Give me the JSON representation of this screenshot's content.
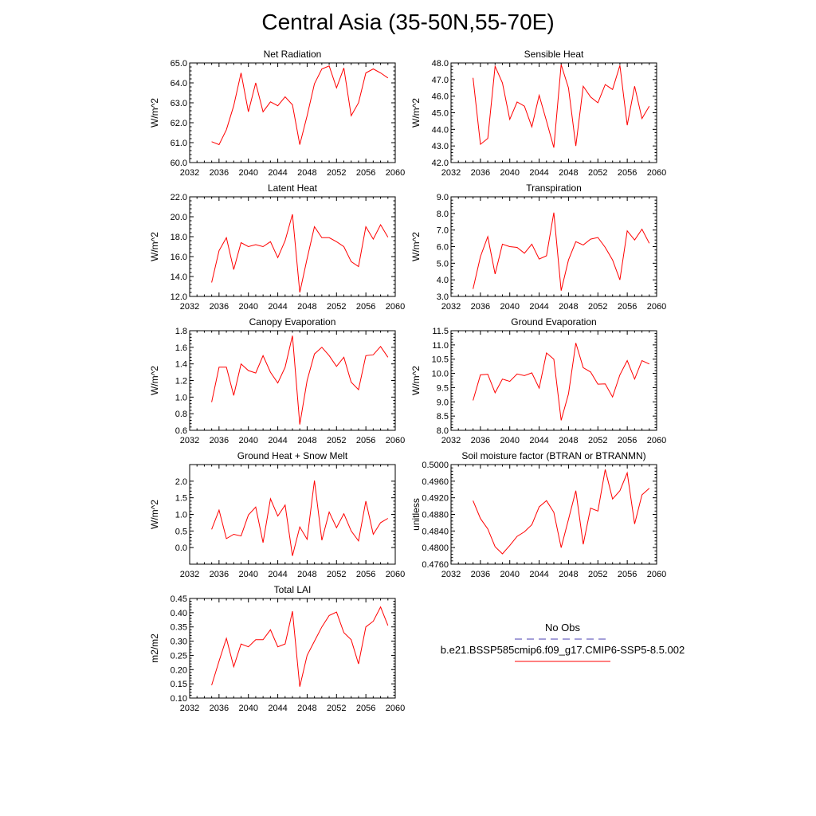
{
  "page_title": "Central Asia (35-50N,55-70E)",
  "legend": {
    "obs_label": "No Obs",
    "obs_color": "#4a3fb0",
    "model_label": "b.e21.BSSP585cmip6.f09_g17.CMIP6-SSP5-8.5.002",
    "model_color": "#ff0000"
  },
  "chart_data": [
    {
      "type": "line",
      "title": "Net Radiation",
      "ylabel": "W/m^2",
      "xlim": [
        2032,
        2060
      ],
      "ylim": [
        60.0,
        65.0
      ],
      "xticks": [
        2032,
        2036,
        2040,
        2044,
        2048,
        2052,
        2056,
        2060
      ],
      "xtick_labels": [
        "2032",
        "2036",
        "2040",
        "2044",
        "2048",
        "2052",
        "2056",
        "2060"
      ],
      "yticks": [
        60.0,
        61.0,
        62.0,
        63.0,
        64.0,
        65.0
      ],
      "ytick_labels": [
        "60.0",
        "61.0",
        "62.0",
        "63.0",
        "64.0",
        "65.0"
      ],
      "series": [
        {
          "color": "#ff0000",
          "x": [
            2035,
            2036,
            2037,
            2038,
            2039,
            2040,
            2041,
            2042,
            2043,
            2044,
            2045,
            2046,
            2047,
            2048,
            2049,
            2050,
            2051,
            2052,
            2053,
            2054,
            2055,
            2056,
            2057,
            2058,
            2059
          ],
          "y": [
            61.05,
            60.9,
            61.65,
            62.85,
            64.5,
            62.55,
            64.0,
            62.55,
            63.05,
            62.85,
            63.3,
            62.9,
            60.9,
            62.35,
            63.95,
            64.7,
            64.85,
            63.75,
            64.75,
            62.35,
            63.0,
            64.5,
            64.7,
            64.5,
            64.25
          ]
        }
      ]
    },
    {
      "type": "line",
      "title": "Sensible Heat",
      "ylabel": "W/m^2",
      "xlim": [
        2032,
        2060
      ],
      "ylim": [
        42.0,
        48.0
      ],
      "xticks": [
        2032,
        2036,
        2040,
        2044,
        2048,
        2052,
        2056,
        2060
      ],
      "xtick_labels": [
        "2032",
        "2036",
        "2040",
        "2044",
        "2048",
        "2052",
        "2056",
        "2060"
      ],
      "yticks": [
        42.0,
        43.0,
        44.0,
        45.0,
        46.0,
        47.0,
        48.0
      ],
      "ytick_labels": [
        "42.0",
        "43.0",
        "44.0",
        "45.0",
        "46.0",
        "47.0",
        "48.0"
      ],
      "series": [
        {
          "color": "#ff0000",
          "x": [
            2035,
            2036,
            2037,
            2038,
            2039,
            2040,
            2041,
            2042,
            2043,
            2044,
            2045,
            2046,
            2047,
            2048,
            2049,
            2050,
            2051,
            2052,
            2053,
            2054,
            2055,
            2056,
            2057,
            2058,
            2059
          ],
          "y": [
            47.1,
            43.1,
            43.45,
            47.8,
            46.8,
            44.6,
            45.65,
            45.4,
            44.15,
            46.05,
            44.5,
            42.9,
            47.9,
            46.5,
            43.0,
            46.6,
            45.95,
            45.6,
            46.7,
            46.4,
            47.85,
            44.25,
            46.6,
            44.65,
            45.4
          ]
        }
      ]
    },
    {
      "type": "line",
      "title": "Latent Heat",
      "ylabel": "W/m^2",
      "xlim": [
        2032,
        2060
      ],
      "ylim": [
        12.0,
        22.0
      ],
      "xticks": [
        2032,
        2036,
        2040,
        2044,
        2048,
        2052,
        2056,
        2060
      ],
      "xtick_labels": [
        "2032",
        "2036",
        "2040",
        "2044",
        "2048",
        "2052",
        "2056",
        "2060"
      ],
      "yticks": [
        12.0,
        14.0,
        16.0,
        18.0,
        20.0,
        22.0
      ],
      "ytick_labels": [
        "12.0",
        "14.0",
        "16.0",
        "18.0",
        "20.0",
        "22.0"
      ],
      "series": [
        {
          "color": "#ff0000",
          "x": [
            2035,
            2036,
            2037,
            2038,
            2039,
            2040,
            2041,
            2042,
            2043,
            2044,
            2045,
            2046,
            2047,
            2048,
            2049,
            2050,
            2051,
            2052,
            2053,
            2054,
            2055,
            2056,
            2057,
            2058,
            2059
          ],
          "y": [
            13.4,
            16.6,
            17.9,
            14.7,
            17.4,
            17.0,
            17.2,
            17.0,
            17.5,
            15.9,
            17.6,
            20.25,
            12.4,
            15.8,
            19.0,
            17.9,
            17.9,
            17.5,
            17.0,
            15.5,
            15.0,
            19.0,
            17.75,
            19.2,
            17.95
          ]
        }
      ]
    },
    {
      "type": "line",
      "title": "Transpiration",
      "ylabel": "W/m^2",
      "xlim": [
        2032,
        2060
      ],
      "ylim": [
        3.0,
        9.0
      ],
      "xticks": [
        2032,
        2036,
        2040,
        2044,
        2048,
        2052,
        2056,
        2060
      ],
      "xtick_labels": [
        "2032",
        "2036",
        "2040",
        "2044",
        "2048",
        "2052",
        "2056",
        "2060"
      ],
      "yticks": [
        3.0,
        4.0,
        5.0,
        6.0,
        7.0,
        8.0,
        9.0
      ],
      "ytick_labels": [
        "3.0",
        "4.0",
        "5.0",
        "6.0",
        "7.0",
        "8.0",
        "9.0"
      ],
      "series": [
        {
          "color": "#ff0000",
          "x": [
            2035,
            2036,
            2037,
            2038,
            2039,
            2040,
            2041,
            2042,
            2043,
            2044,
            2045,
            2046,
            2047,
            2048,
            2049,
            2050,
            2051,
            2052,
            2053,
            2054,
            2055,
            2056,
            2057,
            2058,
            2059
          ],
          "y": [
            3.45,
            5.4,
            6.6,
            4.35,
            6.15,
            6.0,
            5.95,
            5.6,
            6.15,
            5.25,
            5.45,
            8.05,
            3.35,
            5.2,
            6.3,
            6.1,
            6.45,
            6.55,
            5.95,
            5.2,
            4.0,
            6.95,
            6.4,
            7.05,
            6.2
          ]
        }
      ]
    },
    {
      "type": "line",
      "title": "Canopy Evaporation",
      "ylabel": "W/m^2",
      "xlim": [
        2032,
        2060
      ],
      "ylim": [
        0.6,
        1.8
      ],
      "xticks": [
        2032,
        2036,
        2040,
        2044,
        2048,
        2052,
        2056,
        2060
      ],
      "xtick_labels": [
        "2032",
        "2036",
        "2040",
        "2044",
        "2048",
        "2052",
        "2056",
        "2060"
      ],
      "yticks": [
        0.6,
        0.8,
        1.0,
        1.2,
        1.4,
        1.6,
        1.8
      ],
      "ytick_labels": [
        "0.6",
        "0.8",
        "1.0",
        "1.2",
        "1.4",
        "1.6",
        "1.8"
      ],
      "series": [
        {
          "color": "#ff0000",
          "x": [
            2035,
            2036,
            2037,
            2038,
            2039,
            2040,
            2041,
            2042,
            2043,
            2044,
            2045,
            2046,
            2047,
            2048,
            2049,
            2050,
            2051,
            2052,
            2053,
            2054,
            2055,
            2056,
            2057,
            2058,
            2059
          ],
          "y": [
            0.94,
            1.36,
            1.36,
            1.02,
            1.4,
            1.32,
            1.29,
            1.5,
            1.3,
            1.17,
            1.36,
            1.74,
            0.67,
            1.2,
            1.52,
            1.6,
            1.5,
            1.37,
            1.48,
            1.18,
            1.09,
            1.5,
            1.51,
            1.61,
            1.48
          ]
        }
      ]
    },
    {
      "type": "line",
      "title": "Ground Evaporation",
      "ylabel": "W/m^2",
      "xlim": [
        2032,
        2060
      ],
      "ylim": [
        8.0,
        11.5
      ],
      "xticks": [
        2032,
        2036,
        2040,
        2044,
        2048,
        2052,
        2056,
        2060
      ],
      "xtick_labels": [
        "2032",
        "2036",
        "2040",
        "2044",
        "2048",
        "2052",
        "2056",
        "2060"
      ],
      "yticks": [
        8.0,
        8.5,
        9.0,
        9.5,
        10.0,
        10.5,
        11.0,
        11.5
      ],
      "ytick_labels": [
        "8.0",
        "8.5",
        "9.0",
        "9.5",
        "10.0",
        "10.5",
        "11.0",
        "11.5"
      ],
      "series": [
        {
          "color": "#ff0000",
          "x": [
            2035,
            2036,
            2037,
            2038,
            2039,
            2040,
            2041,
            2042,
            2043,
            2044,
            2045,
            2046,
            2047,
            2048,
            2049,
            2050,
            2051,
            2052,
            2053,
            2054,
            2055,
            2056,
            2057,
            2058,
            2059
          ],
          "y": [
            9.05,
            9.95,
            9.97,
            9.32,
            9.8,
            9.72,
            9.98,
            9.92,
            10.02,
            9.48,
            10.72,
            10.5,
            8.35,
            9.28,
            11.07,
            10.2,
            10.05,
            9.62,
            9.63,
            9.17,
            9.95,
            10.45,
            9.8,
            10.45,
            10.33
          ]
        }
      ]
    },
    {
      "type": "line",
      "title": "Ground Heat + Snow Melt",
      "ylabel": "W/m^2",
      "xlim": [
        2032,
        2060
      ],
      "ylim": [
        -0.5,
        2.5
      ],
      "xticks": [
        2032,
        2036,
        2040,
        2044,
        2048,
        2052,
        2056,
        2060
      ],
      "xtick_labels": [
        "2032",
        "2036",
        "2040",
        "2044",
        "2048",
        "2052",
        "2056",
        "2060"
      ],
      "yticks": [
        0.0,
        0.5,
        1.0,
        1.5,
        2.0
      ],
      "ytick_labels": [
        "0.0",
        "0.5",
        "1.0",
        "1.5",
        "2.0"
      ],
      "series": [
        {
          "color": "#ff0000",
          "x": [
            2035,
            2036,
            2037,
            2038,
            2039,
            2040,
            2041,
            2042,
            2043,
            2044,
            2045,
            2046,
            2047,
            2048,
            2049,
            2050,
            2051,
            2052,
            2053,
            2054,
            2055,
            2056,
            2057,
            2058,
            2059
          ],
          "y": [
            0.55,
            1.13,
            0.27,
            0.4,
            0.35,
            0.98,
            1.22,
            0.15,
            1.47,
            0.95,
            1.28,
            -0.25,
            0.62,
            0.25,
            2.02,
            0.22,
            1.07,
            0.6,
            1.02,
            0.5,
            0.2,
            1.4,
            0.4,
            0.75,
            0.88
          ]
        }
      ]
    },
    {
      "type": "line",
      "title": "Soil moisture factor (BTRAN or BTRANMN)",
      "ylabel": "unitless",
      "xlim": [
        2032,
        2060
      ],
      "ylim": [
        0.476,
        0.5
      ],
      "xticks": [
        2032,
        2036,
        2040,
        2044,
        2048,
        2052,
        2056,
        2060
      ],
      "xtick_labels": [
        "2032",
        "2036",
        "2040",
        "2044",
        "2048",
        "2052",
        "2056",
        "2060"
      ],
      "yticks": [
        0.476,
        0.48,
        0.484,
        0.488,
        0.492,
        0.496,
        0.5
      ],
      "ytick_labels": [
        "0.4760",
        "0.4800",
        "0.4840",
        "0.4880",
        "0.4920",
        "0.4960",
        "0.5000"
      ],
      "series": [
        {
          "color": "#ff0000",
          "x": [
            2035,
            2036,
            2037,
            2038,
            2039,
            2040,
            2041,
            2042,
            2043,
            2044,
            2045,
            2046,
            2047,
            2048,
            2049,
            2050,
            2051,
            2052,
            2053,
            2054,
            2055,
            2056,
            2057,
            2058,
            2059
          ],
          "y": [
            0.4913,
            0.487,
            0.4845,
            0.4802,
            0.4785,
            0.4805,
            0.4827,
            0.4838,
            0.4855,
            0.4898,
            0.4913,
            0.4885,
            0.48,
            0.4868,
            0.4937,
            0.4808,
            0.4895,
            0.4888,
            0.4988,
            0.4917,
            0.4937,
            0.498,
            0.4857,
            0.4927,
            0.4943
          ]
        }
      ]
    },
    {
      "type": "line",
      "title": "Total LAI",
      "ylabel": "m2/m2",
      "xlim": [
        2032,
        2060
      ],
      "ylim": [
        0.1,
        0.45
      ],
      "xticks": [
        2032,
        2036,
        2040,
        2044,
        2048,
        2052,
        2056,
        2060
      ],
      "xtick_labels": [
        "2032",
        "2036",
        "2040",
        "2044",
        "2048",
        "2052",
        "2056",
        "2060"
      ],
      "yticks": [
        0.1,
        0.15,
        0.2,
        0.25,
        0.3,
        0.35,
        0.4,
        0.45
      ],
      "ytick_labels": [
        "0.10",
        "0.15",
        "0.20",
        "0.25",
        "0.30",
        "0.35",
        "0.40",
        "0.45"
      ],
      "series": [
        {
          "color": "#ff0000",
          "x": [
            2035,
            2036,
            2037,
            2038,
            2039,
            2040,
            2041,
            2042,
            2043,
            2044,
            2045,
            2046,
            2047,
            2048,
            2049,
            2050,
            2051,
            2052,
            2053,
            2054,
            2055,
            2056,
            2057,
            2058,
            2059
          ],
          "y": [
            0.145,
            0.23,
            0.31,
            0.21,
            0.29,
            0.28,
            0.305,
            0.305,
            0.34,
            0.28,
            0.29,
            0.405,
            0.14,
            0.25,
            0.3,
            0.35,
            0.39,
            0.402,
            0.33,
            0.305,
            0.22,
            0.35,
            0.37,
            0.42,
            0.355
          ]
        }
      ]
    }
  ]
}
